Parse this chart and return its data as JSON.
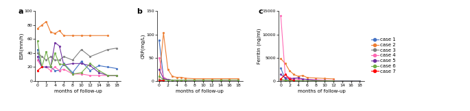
{
  "cases": [
    "case 1",
    "case 2",
    "case 3",
    "case 4",
    "case 5",
    "case 6",
    "case 7"
  ],
  "colors": [
    "#4472C4",
    "#ED7D31",
    "#808080",
    "#FF69B4",
    "#7030A0",
    "#70AD47",
    "#FF0000"
  ],
  "esr": {
    "case1": {
      "x": [
        0,
        1,
        2,
        3,
        4,
        5,
        6,
        8,
        10,
        12,
        14,
        16,
        18
      ],
      "y": [
        45,
        20,
        20,
        20,
        15,
        15,
        25,
        12,
        28,
        15,
        22,
        20,
        18
      ]
    },
    "case2": {
      "x": [
        0,
        1,
        2,
        3,
        4,
        5,
        6,
        8,
        10,
        12,
        16
      ],
      "y": [
        75,
        80,
        85,
        70,
        68,
        72,
        65,
        65,
        65,
        65,
        65
      ]
    },
    "case3": {
      "x": [
        0,
        1,
        2,
        3,
        4,
        5,
        6,
        8,
        10,
        12,
        16,
        18
      ],
      "y": [
        40,
        35,
        30,
        35,
        30,
        30,
        35,
        30,
        45,
        35,
        45,
        47
      ]
    },
    "case4": {
      "x": [
        0,
        1,
        2,
        3,
        4,
        5,
        6,
        8,
        10,
        12,
        14,
        16,
        18
      ],
      "y": [
        30,
        20,
        20,
        15,
        20,
        15,
        17,
        10,
        10,
        8,
        8,
        8,
        8
      ]
    },
    "case5": {
      "x": [
        0,
        1,
        2,
        3,
        4,
        5,
        6,
        8,
        10,
        12,
        14,
        16,
        18
      ],
      "y": [
        35,
        20,
        20,
        20,
        55,
        50,
        23,
        25,
        25,
        22,
        12,
        8,
        8
      ]
    },
    "case6": {
      "x": [
        0,
        1,
        2,
        3,
        4,
        5,
        6,
        8,
        10,
        12,
        14,
        16,
        18
      ],
      "y": [
        57,
        20,
        42,
        20,
        40,
        24,
        24,
        10,
        12,
        25,
        15,
        8,
        8
      ]
    },
    "case7": {
      "x": [
        0,
        1
      ],
      "y": [
        15,
        20
      ]
    }
  },
  "esr_ylabel": "ESR(mm/h)",
  "esr_ylim": [
    0,
    100
  ],
  "esr_yticks": [
    0,
    20,
    40,
    60,
    80,
    100
  ],
  "crp": {
    "case1": {
      "x": [
        0,
        1,
        2,
        3,
        4,
        5,
        6,
        8,
        10,
        12,
        14,
        16,
        18
      ],
      "y": [
        87,
        8,
        3,
        2,
        2,
        2,
        2,
        2,
        2,
        2,
        2,
        2,
        2
      ]
    },
    "case2": {
      "x": [
        0,
        1,
        2,
        3,
        4,
        5,
        6,
        8,
        10,
        12,
        14,
        16,
        18
      ],
      "y": [
        3,
        103,
        25,
        10,
        8,
        8,
        6,
        5,
        5,
        5,
        5,
        5,
        5
      ]
    },
    "case3": {
      "x": [
        0,
        1,
        2,
        3,
        4,
        5,
        6,
        8,
        10,
        12,
        14,
        16,
        18
      ],
      "y": [
        3,
        2,
        2,
        2,
        2,
        2,
        2,
        2,
        2,
        2,
        2,
        2,
        2
      ]
    },
    "case4": {
      "x": [
        0,
        1,
        2,
        3,
        4,
        5,
        6,
        8,
        10,
        12,
        14,
        16,
        18
      ],
      "y": [
        50,
        8,
        3,
        2,
        2,
        2,
        2,
        2,
        2,
        2,
        2,
        2,
        2
      ]
    },
    "case5": {
      "x": [
        0,
        1,
        2,
        3,
        4,
        5,
        6,
        8,
        10,
        12,
        14,
        16,
        18
      ],
      "y": [
        25,
        5,
        3,
        2,
        2,
        2,
        2,
        2,
        2,
        2,
        2,
        2,
        2
      ]
    },
    "case6": {
      "x": [
        0,
        1,
        2,
        3,
        4,
        5,
        6,
        8,
        10,
        12,
        14,
        16,
        18
      ],
      "y": [
        10,
        3,
        2,
        2,
        2,
        2,
        2,
        2,
        2,
        2,
        2,
        2,
        2
      ]
    },
    "case7": {
      "x": [
        0,
        1
      ],
      "y": [
        2,
        2
      ]
    }
  },
  "crp_ylabel": "CRP(mg/L)",
  "crp_ylim": [
    0,
    150
  ],
  "crp_yticks": [
    0,
    50,
    100,
    150
  ],
  "ferritin": {
    "case1": {
      "x": [
        0,
        1,
        2,
        3,
        4,
        5,
        6,
        8,
        10,
        12,
        14,
        16,
        18
      ],
      "y": [
        2800,
        400,
        150,
        100,
        80,
        70,
        60,
        50,
        50,
        50,
        50,
        50,
        50
      ]
    },
    "case2": {
      "x": [
        0,
        1,
        2,
        3,
        4,
        5,
        6,
        8,
        10,
        12
      ],
      "y": [
        4800,
        3800,
        2200,
        1400,
        1000,
        1200,
        750,
        650,
        550,
        450
      ]
    },
    "case3": {
      "x": [
        0,
        1,
        2,
        3,
        4,
        5,
        6,
        8,
        10,
        12,
        14,
        16,
        18
      ],
      "y": [
        150,
        130,
        120,
        100,
        100,
        90,
        80,
        70,
        60,
        50,
        50,
        50,
        50
      ]
    },
    "case4": {
      "x": [
        0,
        1,
        2,
        3,
        4,
        5,
        6,
        8,
        10,
        12
      ],
      "y": [
        14000,
        1400,
        700,
        500,
        400,
        350,
        350,
        250,
        150,
        100
      ]
    },
    "case5": {
      "x": [
        0,
        1,
        2,
        3,
        4,
        5,
        6,
        8,
        10,
        12
      ],
      "y": [
        1400,
        700,
        500,
        600,
        700,
        450,
        350,
        150,
        80,
        60
      ]
    },
    "case6": {
      "x": [
        0,
        1,
        2,
        3,
        4,
        5,
        6,
        8,
        10,
        12
      ],
      "y": [
        400,
        150,
        80,
        70,
        60,
        50,
        50,
        50,
        50,
        50
      ]
    },
    "case7": {
      "x": [
        0,
        1,
        2,
        3
      ],
      "y": [
        400,
        1400,
        400,
        150
      ]
    }
  },
  "ferritin_ylabel": "Ferritin (ng/ml)",
  "ferritin_ylim": [
    0,
    15000
  ],
  "ferritin_yticks": [
    0,
    5000,
    10000,
    15000
  ],
  "xlabel": "months of follow-up",
  "xticks": [
    0,
    2,
    4,
    6,
    8,
    10,
    12,
    14,
    16,
    18
  ]
}
